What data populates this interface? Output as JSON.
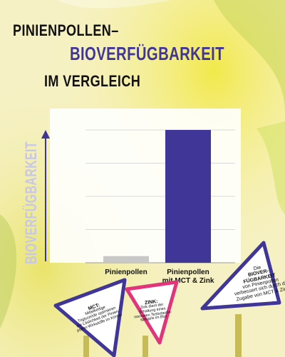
{
  "title": {
    "line1": "PINIENPOLLEN–",
    "line2": "BIOVERFÜGBARKEIT",
    "line3": "IM VERGLEICH"
  },
  "colors": {
    "accent": "#3f3697",
    "bar_low": "#c8c8c8",
    "bar_high": "#3f3697",
    "sign_blue": "#3f3697",
    "sign_pink": "#e0357a"
  },
  "chart_data": {
    "type": "bar",
    "title": "",
    "ylabel": "BIOVERFÜGBARKEIT",
    "xlabel": "",
    "categories": [
      "Pinienpollen",
      "Pinienpollen mit MCT & Zink"
    ],
    "category_lines": [
      [
        "Pinienpollen"
      ],
      [
        "Pinienpollen",
        "mit MCT & Zink"
      ]
    ],
    "values": [
      5,
      100
    ],
    "ylim": [
      0,
      100
    ],
    "grid": true
  },
  "signs": {
    "left": {
      "heading": "MCT:",
      "lines": [
        "Mittelkettige",
        "Triglyceride optimieren",
        "die Löslichkeit der Pinien-",
        "pollen-Wirkstoffe im Körper"
      ]
    },
    "middle": {
      "heading": "ZINK:",
      "lines": [
        "Zink dient der",
        "Erhaltung eines",
        "normalen Testosteron-",
        "spiegels im Blut"
      ]
    },
    "right": {
      "lines_plain_top": [
        "Die"
      ],
      "lines_bold": [
        "BIOVER-",
        "FÜGBARKEIT"
      ],
      "lines_plain": [
        "von Pinienpollen",
        "verbessert sich durch die",
        "Zugabe von MCT & Zink"
      ]
    }
  }
}
